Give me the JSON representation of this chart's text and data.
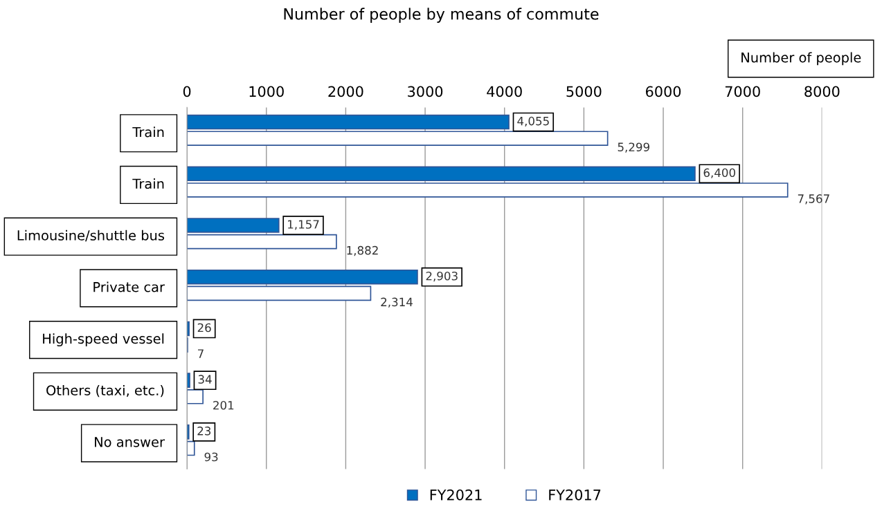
{
  "chart_data": {
    "type": "bar",
    "orientation": "horizontal",
    "title": "Number of people by means of commute",
    "xlabel": "Number of people",
    "categories": [
      "Train",
      "Train",
      "Limousine/shuttle bus",
      "Private car",
      "High-speed vessel",
      "Others (taxi, etc.)",
      "No answer"
    ],
    "series": [
      {
        "name": "FY2021",
        "color": "#0070c0",
        "values": [
          4055,
          6400,
          1157,
          2903,
          26,
          34,
          23
        ],
        "value_labels": [
          "4,055",
          "6,400",
          "1,157",
          "2,903",
          "26",
          "34",
          "23"
        ]
      },
      {
        "name": "FY2017",
        "color": "#ffffff",
        "values": [
          5299,
          7567,
          1882,
          2314,
          7,
          201,
          93
        ],
        "value_labels": [
          "5,299",
          "7,567",
          "1,882",
          "2,314",
          "7",
          "201",
          "93"
        ]
      }
    ],
    "xlim": [
      0,
      8000
    ],
    "xticks": [
      0,
      1000,
      2000,
      3000,
      4000,
      5000,
      6000,
      7000,
      8000
    ],
    "grid": "x",
    "legend": "bottom"
  }
}
